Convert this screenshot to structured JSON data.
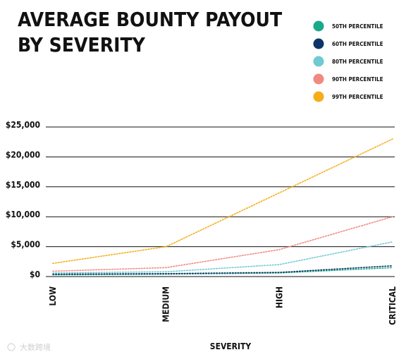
{
  "chart_data": {
    "type": "line",
    "title_lines": [
      "AVERAGE BOUNTY PAYOUT",
      "BY SEVERITY"
    ],
    "xlabel": "SEVERITY",
    "ylabel": "",
    "categories": [
      "LOW",
      "MEDIUM",
      "HIGH",
      "CRITICAL"
    ],
    "yticks": [
      "$0",
      "$5,000",
      "$10,000",
      "$15,000",
      "$20,000",
      "$25,000"
    ],
    "ylim": [
      0,
      25000
    ],
    "legend_position": "top-right",
    "grid": true,
    "series": [
      {
        "name": "50TH PERCENTILE",
        "color": "#1aa98a",
        "values": [
          300,
          400,
          600,
          1500
        ]
      },
      {
        "name": "60TH PERCENTILE",
        "color": "#0d3466",
        "values": [
          400,
          500,
          700,
          1800
        ]
      },
      {
        "name": "80TH PERCENTILE",
        "color": "#6fcad3",
        "values": [
          600,
          800,
          2000,
          5800
        ]
      },
      {
        "name": "90TH PERCENTILE",
        "color": "#f08a80",
        "values": [
          900,
          1500,
          4500,
          10000
        ]
      },
      {
        "name": "99TH PERCENTILE",
        "color": "#f5ad18",
        "values": [
          2200,
          5000,
          14000,
          23000
        ]
      }
    ]
  },
  "watermark": "大数跨境"
}
